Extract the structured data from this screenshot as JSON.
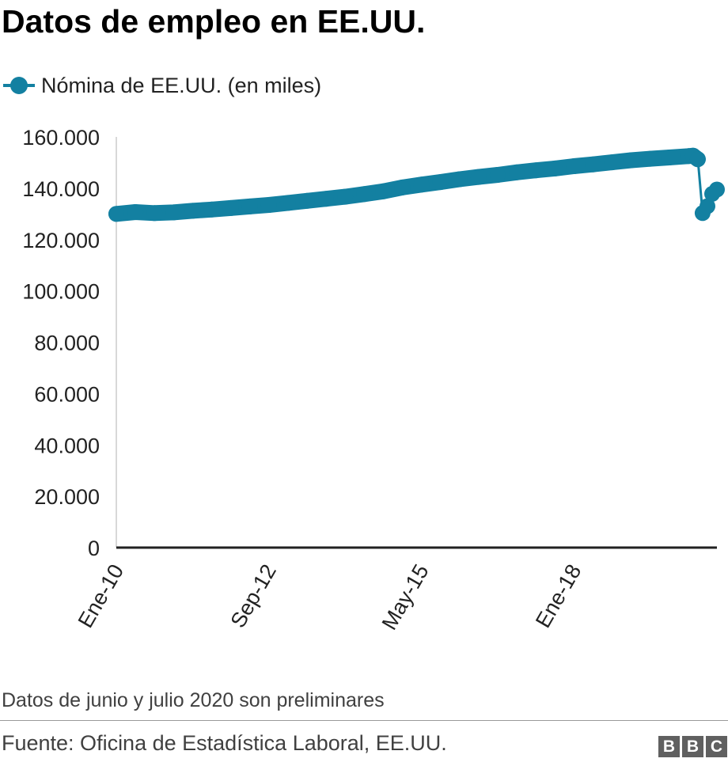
{
  "header": {
    "title": "Datos de empleo en EE.UU."
  },
  "legend": {
    "marker_icon": "circle-line-marker"
  },
  "footer": {
    "note": "Datos de junio y julio 2020 son preliminares",
    "source": "Fuente: Oficina de Estadística Laboral, EE.UU.",
    "logo_letters": [
      "B",
      "B",
      "C"
    ]
  },
  "colors": {
    "series": "#1380A1",
    "axis": "#222222",
    "text": "#222222"
  },
  "chart_data": {
    "type": "line",
    "title": "Datos de empleo en EE.UU.",
    "xlabel": "",
    "ylabel": "",
    "x_tick_labels": [
      "Ene-10",
      "Sep-12",
      "May-15",
      "Ene-18"
    ],
    "y_tick_labels": [
      "0",
      "20.000",
      "40.000",
      "60.000",
      "80.000",
      "100.000",
      "120.000",
      "140.000",
      "160.000"
    ],
    "ylim": [
      0,
      160000
    ],
    "grid": false,
    "legend_position": "top-left",
    "x": [
      "2010-01",
      "2010-05",
      "2010-09",
      "2011-01",
      "2011-05",
      "2011-09",
      "2012-01",
      "2012-05",
      "2012-09",
      "2013-01",
      "2013-05",
      "2013-09",
      "2014-01",
      "2014-05",
      "2014-09",
      "2015-01",
      "2015-05",
      "2015-09",
      "2016-01",
      "2016-05",
      "2016-09",
      "2017-01",
      "2017-05",
      "2017-09",
      "2018-01",
      "2018-05",
      "2018-09",
      "2019-01",
      "2019-05",
      "2019-09",
      "2020-01",
      "2020-02",
      "2020-03",
      "2020-04",
      "2020-05",
      "2020-06",
      "2020-07"
    ],
    "series": [
      {
        "name": "Nómina de EE.UU. (en miles)",
        "values": [
          130000,
          130700,
          130300,
          130600,
          131200,
          131700,
          132300,
          132900,
          133500,
          134300,
          135100,
          135900,
          136700,
          137700,
          138800,
          140300,
          141400,
          142400,
          143500,
          144400,
          145200,
          146200,
          147000,
          147700,
          148600,
          149300,
          150100,
          150900,
          151500,
          152000,
          152500,
          152700,
          151300,
          130300,
          133000,
          137800,
          139500
        ]
      }
    ]
  }
}
